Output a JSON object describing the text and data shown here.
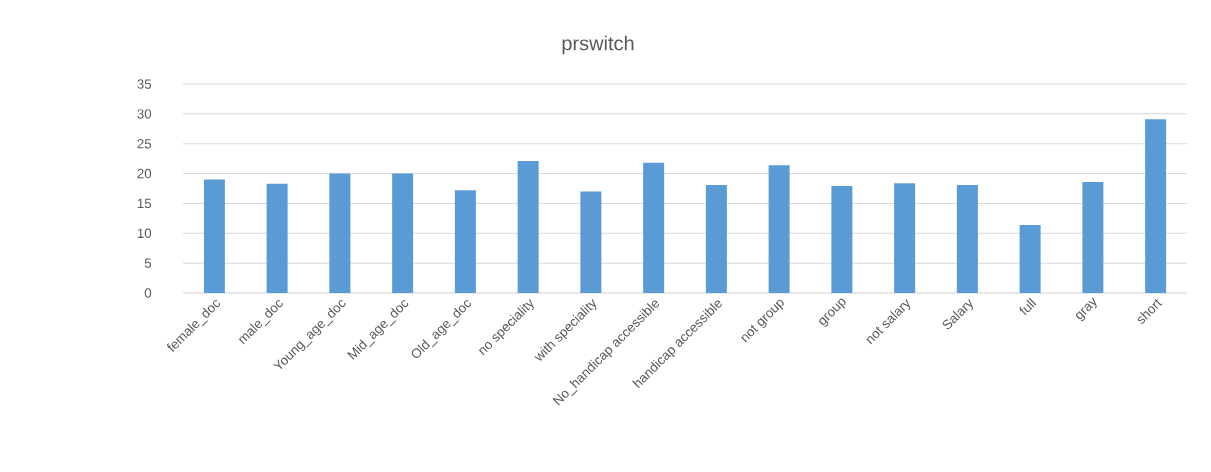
{
  "chart_data": {
    "type": "bar",
    "title": "prswitch",
    "categories": [
      "female_doc",
      "male_doc",
      "Young_age_doc",
      "Mid_age_doc",
      "Old_age_doc",
      "no speciality",
      "with speciality",
      "No_handicap accessible",
      "handicap accessible",
      "not group",
      "group",
      "not salary",
      "Salary",
      "full",
      "gray",
      "short"
    ],
    "values": [
      19,
      18.3,
      20,
      20,
      17.2,
      22.1,
      17.0,
      21.8,
      18.1,
      21.4,
      17.9,
      18.4,
      18.1,
      11.4,
      18.6,
      29.1
    ],
    "color": "#5b9bd5",
    "ylim": [
      0,
      35
    ],
    "yticks": [
      0,
      5,
      10,
      15,
      20,
      25,
      30,
      35
    ],
    "grid": "y"
  }
}
